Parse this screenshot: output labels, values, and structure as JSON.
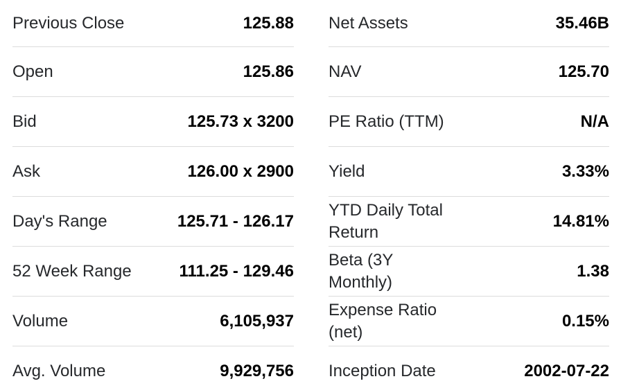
{
  "left": [
    {
      "label": "Previous Close",
      "value": "125.88"
    },
    {
      "label": "Open",
      "value": "125.86"
    },
    {
      "label": "Bid",
      "value": "125.73 x 3200"
    },
    {
      "label": "Ask",
      "value": "126.00 x 2900"
    },
    {
      "label": "Day's Range",
      "value": "125.71 - 126.17"
    },
    {
      "label": "52 Week Range",
      "value": "111.25 - 129.46"
    },
    {
      "label": "Volume",
      "value": "6,105,937"
    },
    {
      "label": "Avg. Volume",
      "value": "9,929,756"
    }
  ],
  "right": [
    {
      "label": "Net Assets",
      "value": "35.46B"
    },
    {
      "label": "NAV",
      "value": "125.70"
    },
    {
      "label": "PE Ratio (TTM)",
      "value": "N/A"
    },
    {
      "label": "Yield",
      "value": "3.33%"
    },
    {
      "label": "YTD Daily Total Return",
      "value": "14.81%"
    },
    {
      "label": "Beta (3Y Monthly)",
      "value": "1.38"
    },
    {
      "label": "Expense Ratio (net)",
      "value": "0.15%"
    },
    {
      "label": "Inception Date",
      "value": "2002-07-22"
    }
  ]
}
